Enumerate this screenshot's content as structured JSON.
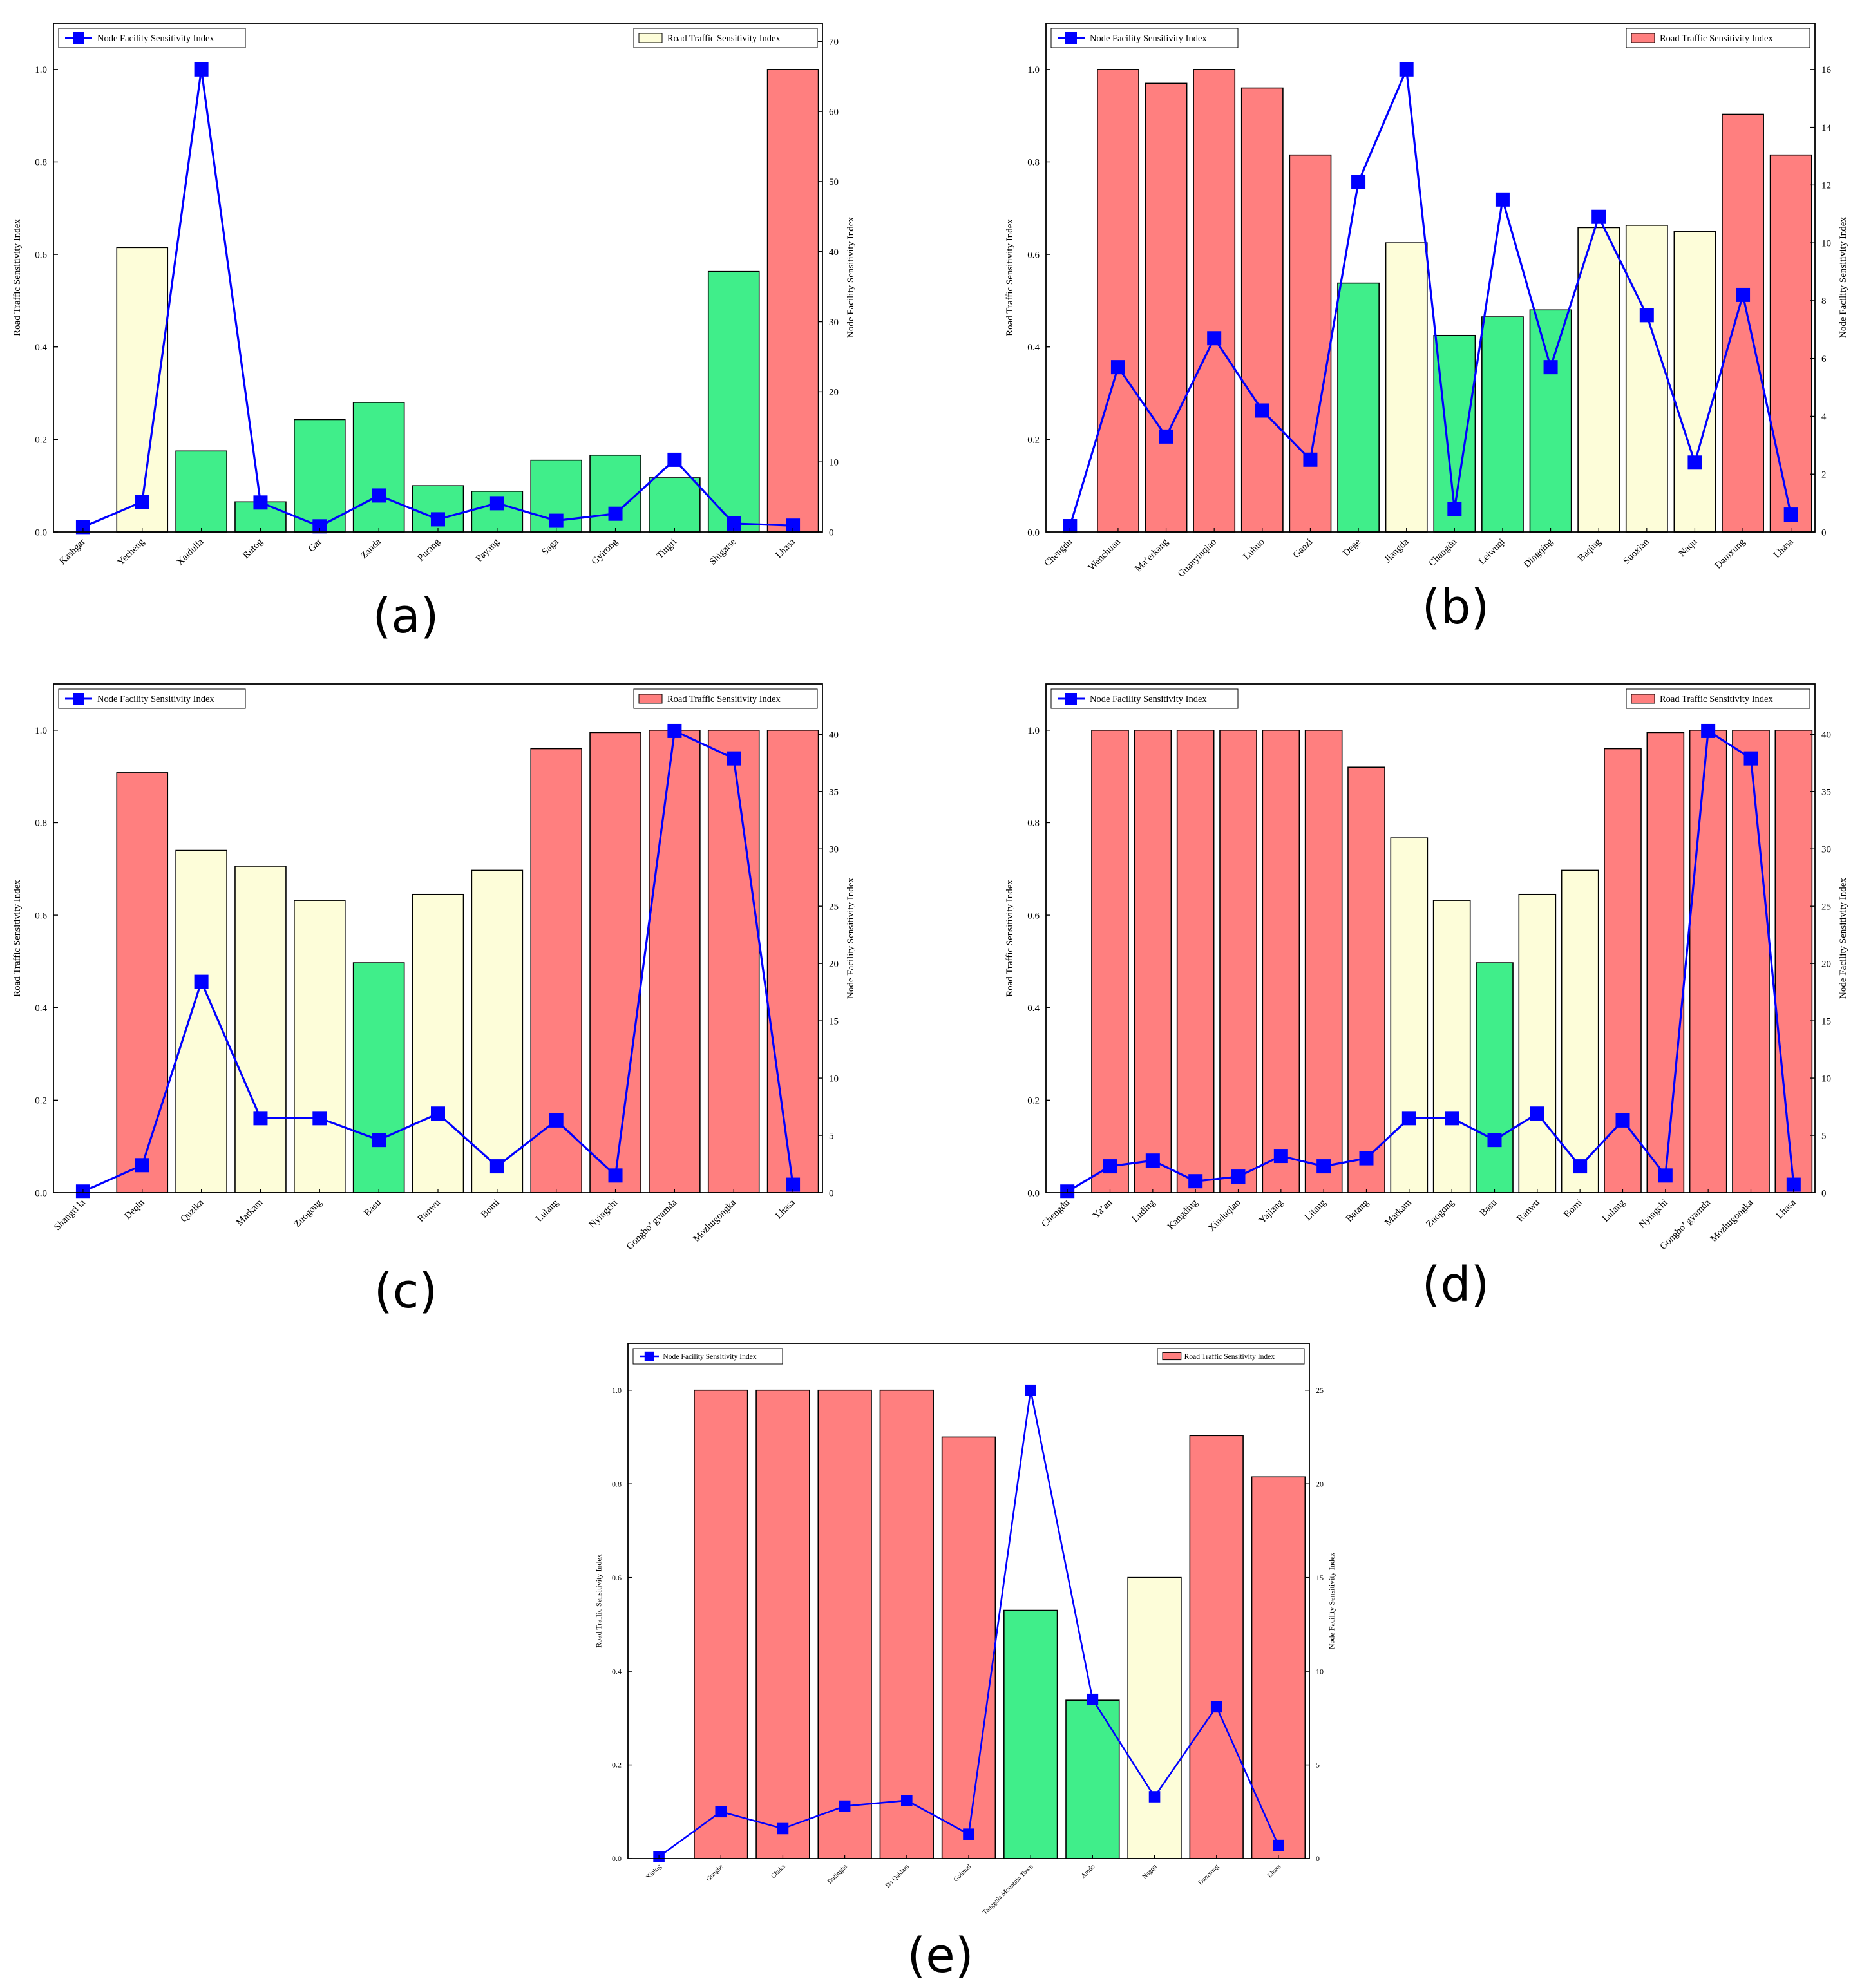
{
  "colors": {
    "red": "#ff7f7f",
    "green": "#40ee8a",
    "yellow": "#fdfdd9",
    "line": "#0000ff",
    "edge": "#000000"
  },
  "chart_data": [
    {
      "panel": "(a)",
      "type": "bar+line",
      "ylabel_left": "Road Traffic Sensitivity Index",
      "ylabel_right": "Node Facility Sensitivity Index",
      "legend_line": "Node Facility Sensitivity Index",
      "legend_bar": "Road Traffic Sensitivity Index",
      "legend_bar_color": "yellow",
      "left_ticks": [
        "0.0",
        "0.2",
        "0.4",
        "0.6",
        "0.8",
        "1.0"
      ],
      "right_ticks": [
        "0",
        "10",
        "20",
        "30",
        "40",
        "50",
        "60",
        "70"
      ],
      "ylim_left": [
        0,
        1.1
      ],
      "ylim_right": [
        0,
        72.6
      ],
      "categories": [
        "Kashgar",
        "Yecheng",
        "Xaidulla",
        "Rutog",
        "Gar",
        "Zanda",
        "Purang",
        "Payang",
        "Saga",
        "Gyirong",
        "Tingri",
        "Shigatse",
        "Lhasa"
      ],
      "bars": [
        null,
        0.615,
        0.175,
        0.065,
        0.243,
        0.28,
        0.1,
        0.088,
        0.155,
        0.166,
        0.117,
        0.563,
        1.0
      ],
      "bar_colors": [
        null,
        "yellow",
        "green",
        "green",
        "green",
        "green",
        "green",
        "green",
        "green",
        "green",
        "green",
        "green",
        "red"
      ],
      "line": [
        0.7,
        4.3,
        66,
        4.2,
        0.8,
        5.2,
        1.8,
        4.1,
        1.6,
        2.6,
        10.3,
        1.2,
        0.9
      ]
    },
    {
      "panel": "(b)",
      "type": "bar+line",
      "ylabel_left": "Road Traffic Sensitivity Index",
      "ylabel_right": "Node Facility Sensitivity Index",
      "legend_line": "Node Facility Sensitivity Index",
      "legend_bar": "Road Traffic Sensitivity Index",
      "legend_bar_color": "red",
      "left_ticks": [
        "0.0",
        "0.2",
        "0.4",
        "0.6",
        "0.8",
        "1.0"
      ],
      "right_ticks": [
        "0",
        "2",
        "4",
        "6",
        "8",
        "10",
        "12",
        "14",
        "16"
      ],
      "ylim_left": [
        0,
        1.1
      ],
      "ylim_right": [
        0,
        17.6
      ],
      "categories": [
        "Chengdu",
        "Wenchuan",
        "Ma’erkang",
        "Guanyinqiao",
        "Luhuo",
        "Ganzi",
        "Dege",
        "Jiangda",
        "Changdu",
        "Leiwuqi",
        "Dingqing",
        "Baqing",
        "Suoxian",
        "Naqu",
        "Damxung",
        "Lhasa"
      ],
      "bars": [
        null,
        1.0,
        0.97,
        1.0,
        0.96,
        0.815,
        0.538,
        0.625,
        0.425,
        0.465,
        0.48,
        0.658,
        0.663,
        0.65,
        0.903,
        0.815
      ],
      "bar_colors": [
        null,
        "red",
        "red",
        "red",
        "red",
        "red",
        "green",
        "yellow",
        "green",
        "green",
        "green",
        "yellow",
        "yellow",
        "yellow",
        "red",
        "red"
      ],
      "line": [
        0.2,
        5.7,
        3.3,
        6.7,
        4.2,
        2.5,
        12.1,
        16,
        0.8,
        11.5,
        5.7,
        10.9,
        7.5,
        2.4,
        8.2,
        0.6
      ]
    },
    {
      "panel": "(c)",
      "type": "bar+line",
      "ylabel_left": "Road Traffic Sensitivity Index",
      "ylabel_right": "Node Facility Sensitivity Index",
      "legend_line": "Node Facility Sensitivity Index",
      "legend_bar": "Road Traffic Sensitivity Index",
      "legend_bar_color": "red",
      "left_ticks": [
        "0.0",
        "0.2",
        "0.4",
        "0.6",
        "0.8",
        "1.0"
      ],
      "right_ticks": [
        "0",
        "5",
        "10",
        "15",
        "20",
        "25",
        "30",
        "35",
        "40"
      ],
      "ylim_left": [
        0,
        1.1
      ],
      "ylim_right": [
        0,
        44.4
      ],
      "categories": [
        "Shangri la",
        "Deqin",
        "Quzika",
        "Markam",
        "Zuogong",
        "Basu",
        "Ranwu",
        "Bomi",
        "Lulang",
        "Nyingchi",
        "Gongbo’ gyamda",
        "Mozhugongka",
        "Lhasa"
      ],
      "bars": [
        null,
        0.908,
        0.74,
        0.706,
        0.632,
        0.497,
        0.645,
        0.697,
        0.96,
        0.995,
        1.0,
        1.0,
        1.0
      ],
      "bar_colors": [
        null,
        "red",
        "yellow",
        "yellow",
        "yellow",
        "green",
        "yellow",
        "yellow",
        "red",
        "red",
        "red",
        "red",
        "red"
      ],
      "line": [
        0.1,
        2.4,
        18.4,
        6.5,
        6.5,
        4.6,
        6.9,
        2.3,
        6.3,
        1.5,
        40.3,
        37.9,
        0.7
      ]
    },
    {
      "panel": "(d)",
      "type": "bar+line",
      "ylabel_left": "Road Traffic Sensitivity Index",
      "ylabel_right": "Node Facility Sensitivity Index",
      "legend_line": "Node Facility Sensitivity Index",
      "legend_bar": "Road Traffic Sensitivity Index",
      "legend_bar_color": "red",
      "left_ticks": [
        "0.0",
        "0.2",
        "0.4",
        "0.6",
        "0.8",
        "1.0"
      ],
      "right_ticks": [
        "0",
        "5",
        "10",
        "15",
        "20",
        "25",
        "30",
        "35",
        "40"
      ],
      "ylim_left": [
        0,
        1.1
      ],
      "ylim_right": [
        0,
        44.4
      ],
      "categories": [
        "Chengdu",
        "Ya’an",
        "Luding",
        "Kangding",
        "Xinduqiao",
        "Yajiang",
        "Litang",
        "Batang",
        "Markam",
        "Zuogong",
        "Basu",
        "Ranwu",
        "Bomi",
        "Lulang",
        "Nyingchi",
        "Gongbo’ gyamda",
        "Mozhugongka",
        "Lhasa"
      ],
      "bars": [
        null,
        1.0,
        1.0,
        1.0,
        1.0,
        1.0,
        1.0,
        0.92,
        0.767,
        0.632,
        0.497,
        0.645,
        0.697,
        0.96,
        0.995,
        1.0,
        1.0,
        1.0
      ],
      "bar_colors": [
        null,
        "red",
        "red",
        "red",
        "red",
        "red",
        "red",
        "red",
        "yellow",
        "yellow",
        "green",
        "yellow",
        "yellow",
        "red",
        "red",
        "red",
        "red",
        "red"
      ],
      "line": [
        0.1,
        2.3,
        2.8,
        1.0,
        1.4,
        3.2,
        2.3,
        3.0,
        6.5,
        6.5,
        4.6,
        6.9,
        2.3,
        6.3,
        1.5,
        40.3,
        37.9,
        0.7
      ]
    },
    {
      "panel": "(e)",
      "type": "bar+line",
      "ylabel_left": "Road Traffic Sensitivity Index",
      "ylabel_right": "Node Facility Sensitivity Index",
      "legend_line": "Node Facility Sensitivity Index",
      "legend_bar": "Road Traffic Sensitivity Index",
      "legend_bar_color": "red",
      "left_ticks": [
        "0.0",
        "0.2",
        "0.4",
        "0.6",
        "0.8",
        "1.0"
      ],
      "right_ticks": [
        "0",
        "5",
        "10",
        "15",
        "20",
        "25"
      ],
      "ylim_left": [
        0,
        1.1
      ],
      "ylim_right": [
        0,
        27.5
      ],
      "categories": [
        "Xining",
        "Gonghe",
        "Chaka",
        "Dulingha",
        "Da Qaidam",
        "Golmud",
        "Tanggula Mountain Town",
        "Amdo",
        "Nagqu",
        "Damxung",
        "Lhasa"
      ],
      "bars": [
        null,
        1.0,
        1.0,
        1.0,
        1.0,
        0.9,
        0.53,
        0.338,
        0.6,
        0.903,
        0.815
      ],
      "bar_colors": [
        null,
        "red",
        "red",
        "red",
        "red",
        "red",
        "green",
        "green",
        "yellow",
        "red",
        "red"
      ],
      "line": [
        0.1,
        2.5,
        1.6,
        2.8,
        3.1,
        1.3,
        25,
        8.5,
        3.3,
        8.1,
        0.7
      ]
    }
  ]
}
